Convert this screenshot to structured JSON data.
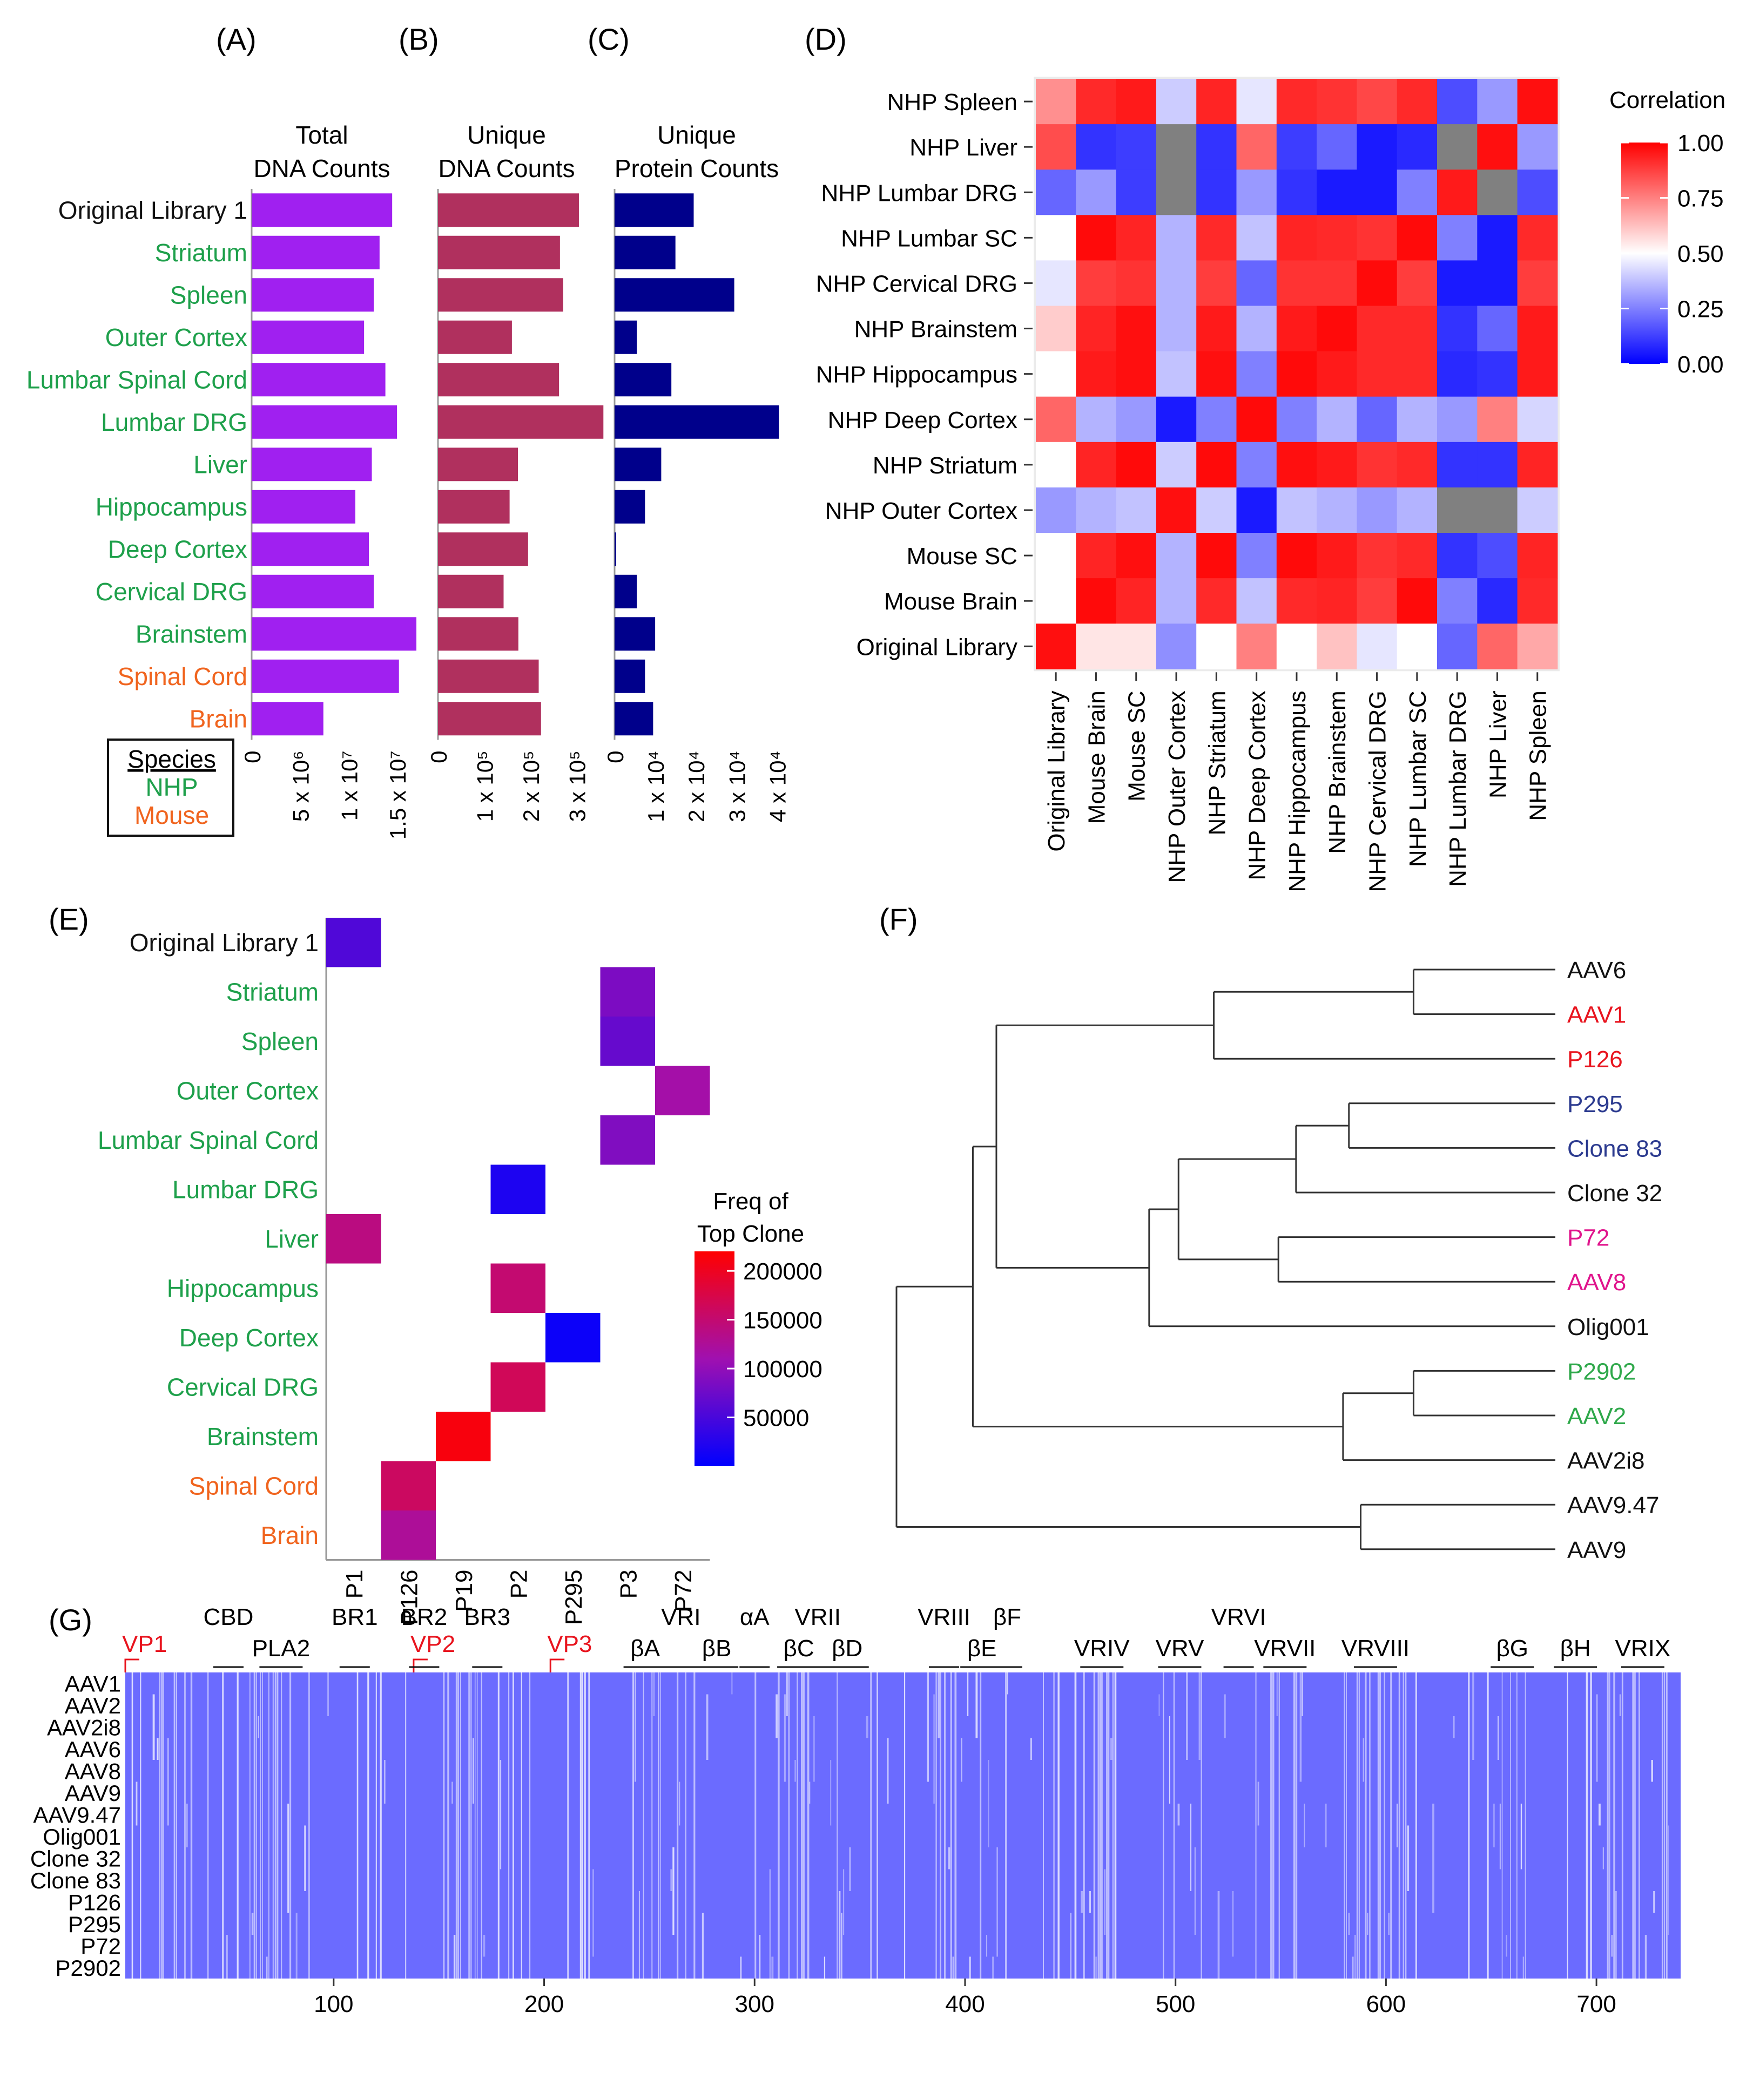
{
  "colors": {
    "nhp": "#1ea04b",
    "mouse": "#f0641e",
    "black": "#111111",
    "total_bar": "#a020f0",
    "unique_dna_bar": "#b0305e",
    "protein_bar": "#00008b",
    "heat_low": "#0000ff",
    "heat_mid": "#ffffff",
    "heat_high": "#ff0000",
    "heat_na": "#808080",
    "align_bg": "#6b6bff",
    "red_label": "#e8141e",
    "blue_label": "#2b3a8f",
    "magenta_label": "#e0148c",
    "green_label": "#2ea84a"
  },
  "panel_labels": {
    "A": "(A)",
    "B": "(B)",
    "C": "(C)",
    "D": "(D)",
    "E": "(E)",
    "F": "(F)",
    "G": "(G)"
  },
  "chart_data": [
    {
      "id": "A",
      "type": "bar",
      "orientation": "horizontal",
      "title": "Total DNA Counts",
      "title_lines": [
        "Total",
        "DNA Counts"
      ],
      "categories": [
        "Original Library 1",
        "Striatum",
        "Spleen",
        "Outer Cortex",
        "Lumbar Spinal Cord",
        "Lumbar DRG",
        "Liver",
        "Hippocampus",
        "Deep Cortex",
        "Cervical DRG",
        "Brainstem",
        "Spinal Cord",
        "Brain"
      ],
      "category_species": [
        "none",
        "NHP",
        "NHP",
        "NHP",
        "NHP",
        "NHP",
        "NHP",
        "NHP",
        "NHP",
        "NHP",
        "NHP",
        "Mouse",
        "Mouse"
      ],
      "values": [
        14500000,
        13200000,
        12600000,
        11600000,
        13800000,
        15000000,
        12400000,
        10700000,
        12100000,
        12600000,
        17000000,
        15200000,
        7400000
      ],
      "xlim": [
        0,
        17500000
      ],
      "ticks": [
        0,
        5000000,
        10000000,
        15000000
      ],
      "tick_labels": [
        "0",
        "5 x 10⁶",
        "1 x 10⁷",
        "1.5 x 10⁷"
      ]
    },
    {
      "id": "B",
      "type": "bar",
      "orientation": "horizontal",
      "title": "Unique DNA Counts",
      "title_lines": [
        "Unique",
        "DNA Counts"
      ],
      "values": [
        305000,
        264000,
        271000,
        160000,
        262000,
        358000,
        173000,
        155000,
        195000,
        142000,
        174000,
        218000,
        223000
      ],
      "xlim": [
        0,
        360000
      ],
      "ticks": [
        0,
        100000,
        200000,
        300000
      ],
      "tick_labels": [
        "0",
        "1 x 10⁵",
        "2 x 10⁵",
        "3 x 10⁵"
      ]
    },
    {
      "id": "C",
      "type": "bar",
      "orientation": "horizontal",
      "title": "Unique Protein Counts",
      "title_lines": [
        "Unique",
        "Protein Counts"
      ],
      "values": [
        19500,
        15000,
        29500,
        5500,
        14000,
        40500,
        11500,
        7500,
        400,
        5500,
        10000,
        7500,
        9500
      ],
      "xlim": [
        0,
        41000
      ],
      "ticks": [
        0,
        10000,
        20000,
        30000,
        40000
      ],
      "tick_labels": [
        "0",
        "1 x 10⁴",
        "2 x 10⁴",
        "3 x 10⁴",
        "4 x 10⁴"
      ]
    },
    {
      "id": "D",
      "type": "heatmap",
      "title": "Correlation",
      "rows": [
        "NHP Spleen",
        "NHP Liver",
        "NHP Lumbar DRG",
        "NHP Lumbar SC",
        "NHP Cervical DRG",
        "NHP Brainstem",
        "NHP Hippocampus",
        "NHP Deep Cortex",
        "NHP Striatum",
        "NHP Outer Cortex",
        "Mouse SC",
        "Mouse Brain",
        "Original Library"
      ],
      "cols": [
        "Original Library",
        "Mouse Brain",
        "Mouse SC",
        "NHP Outer Cortex",
        "NHP Striatum",
        "NHP Deep Cortex",
        "NHP Hippocampus",
        "NHP Brainstem",
        "NHP Cervical DRG",
        "NHP Lumbar SC",
        "NHP Lumbar DRG",
        "NHP Liver",
        "NHP Spleen"
      ],
      "values": [
        [
          0.72,
          0.92,
          0.95,
          0.4,
          0.93,
          0.45,
          0.92,
          0.9,
          0.86,
          0.92,
          0.15,
          0.3,
          0.97
        ],
        [
          0.85,
          0.1,
          0.12,
          null,
          0.1,
          0.8,
          0.12,
          0.2,
          0.05,
          0.08,
          null,
          0.97,
          0.3
        ],
        [
          0.2,
          0.3,
          0.12,
          null,
          0.1,
          0.3,
          0.1,
          0.05,
          0.05,
          0.25,
          0.95,
          null,
          0.15
        ],
        [
          0.5,
          0.98,
          0.93,
          0.35,
          0.92,
          0.38,
          0.93,
          0.92,
          0.9,
          0.98,
          0.25,
          0.05,
          0.92
        ],
        [
          0.45,
          0.88,
          0.9,
          0.35,
          0.88,
          0.2,
          0.9,
          0.9,
          0.98,
          0.88,
          0.05,
          0.05,
          0.88
        ],
        [
          0.6,
          0.93,
          0.97,
          0.35,
          0.95,
          0.35,
          0.95,
          0.98,
          0.92,
          0.92,
          0.1,
          0.2,
          0.95
        ],
        [
          0.5,
          0.95,
          0.97,
          0.38,
          0.97,
          0.25,
          0.98,
          0.95,
          0.92,
          0.92,
          0.08,
          0.1,
          0.95
        ],
        [
          0.8,
          0.35,
          0.3,
          0.05,
          0.25,
          0.98,
          0.25,
          0.35,
          0.2,
          0.35,
          0.3,
          0.75,
          0.42
        ],
        [
          0.5,
          0.93,
          0.98,
          0.4,
          0.98,
          0.25,
          0.97,
          0.95,
          0.9,
          0.92,
          0.1,
          0.1,
          0.93
        ],
        [
          0.3,
          0.35,
          0.38,
          0.97,
          0.4,
          0.05,
          0.38,
          0.35,
          0.3,
          0.35,
          null,
          null,
          0.4
        ],
        [
          0.5,
          0.93,
          0.97,
          0.35,
          0.98,
          0.25,
          0.98,
          0.95,
          0.9,
          0.92,
          0.1,
          0.15,
          0.93
        ],
        [
          0.5,
          0.98,
          0.93,
          0.35,
          0.92,
          0.38,
          0.92,
          0.93,
          0.88,
          0.98,
          0.25,
          0.08,
          0.92
        ],
        [
          0.97,
          0.55,
          0.55,
          0.28,
          0.5,
          0.75,
          0.5,
          0.62,
          0.45,
          0.5,
          0.2,
          0.8,
          0.67
        ]
      ],
      "colorbar": {
        "min": 0,
        "max": 1,
        "ticks": [
          "1.00",
          "0.75",
          "0.50",
          "0.25",
          "0.00"
        ]
      }
    },
    {
      "id": "E",
      "type": "heatmap",
      "title": "Freq of Top Clone",
      "title_lines": [
        "Freq of",
        "Top Clone"
      ],
      "rows": [
        "Original Library 1",
        "Striatum",
        "Spleen",
        "Outer Cortex",
        "Lumbar Spinal Cord",
        "Lumbar DRG",
        "Liver",
        "Hippocampus",
        "Deep Cortex",
        "Cervical DRG",
        "Brainstem",
        "Spinal Cord",
        "Brain"
      ],
      "cols": [
        "P1",
        "P126",
        "P19",
        "P2",
        "P295",
        "P3",
        "P72"
      ],
      "cells": [
        {
          "row": "Original Library 1",
          "col": "P1",
          "value": 55000
        },
        {
          "row": "Striatum",
          "col": "P3",
          "value": 85000
        },
        {
          "row": "Spleen",
          "col": "P3",
          "value": 70000
        },
        {
          "row": "Outer Cortex",
          "col": "P72",
          "value": 115000
        },
        {
          "row": "Lumbar Spinal Cord",
          "col": "P3",
          "value": 88000
        },
        {
          "row": "Lumbar DRG",
          "col": "P2",
          "value": 20000
        },
        {
          "row": "Liver",
          "col": "P1",
          "value": 140000
        },
        {
          "row": "Hippocampus",
          "col": "P2",
          "value": 150000
        },
        {
          "row": "Deep Cortex",
          "col": "P295",
          "value": 8000
        },
        {
          "row": "Cervical DRG",
          "col": "P2",
          "value": 165000
        },
        {
          "row": "Brainstem",
          "col": "P19",
          "value": 212000
        },
        {
          "row": "Spinal Cord",
          "col": "P126",
          "value": 160000
        },
        {
          "row": "Brain",
          "col": "P126",
          "value": 125000
        }
      ],
      "colorbar": {
        "min": 0,
        "max": 220000,
        "ticks": [
          200000,
          150000,
          100000,
          50000
        ],
        "tick_labels": [
          "200000",
          "150000",
          "100000",
          "50000"
        ]
      }
    },
    {
      "id": "F",
      "type": "dendrogram",
      "leaves": [
        "AAV6",
        "AAV1",
        "P126",
        "P295",
        "Clone 83",
        "Clone 32",
        "P72",
        "AAV8",
        "Olig001",
        "P2902",
        "AAV2",
        "AAV2i8",
        "AAV9.47",
        "AAV9"
      ],
      "leaf_colors": [
        "#111111",
        "#e8141e",
        "#e8141e",
        "#2b3a8f",
        "#2b3a8f",
        "#111111",
        "#e0148c",
        "#e0148c",
        "#111111",
        "#2ea84a",
        "#2ea84a",
        "#111111",
        "#111111",
        "#111111"
      ],
      "merges": [
        {
          "a": "AAV6",
          "b": "AAV1",
          "height": 0.12
        },
        {
          "a": "AAV6+AAV1",
          "b": "P126",
          "height": 0.46
        },
        {
          "a": "P295",
          "b": "Clone 83",
          "height": 0.23
        },
        {
          "a": "P295+Clone 83",
          "b": "Clone 32",
          "height": 0.32
        },
        {
          "a": "P72",
          "b": "AAV8",
          "height": 0.35
        },
        {
          "a": "P295-Clone32",
          "b": "P72+AAV8",
          "height": 0.52
        },
        {
          "a": "prev",
          "b": "Olig001",
          "height": 0.57
        },
        {
          "a": "prev",
          "b": "AAV6-P126",
          "height": 0.83
        },
        {
          "a": "P2902",
          "b": "AAV2",
          "height": 0.12
        },
        {
          "a": "P2902+AAV2",
          "b": "AAV2i8",
          "height": 0.24
        },
        {
          "a": "prev",
          "b": "big",
          "height": 0.87
        },
        {
          "a": "AAV9.47",
          "b": "AAV9",
          "height": 0.21
        },
        {
          "a": "prev",
          "b": "root",
          "height": 1.0
        }
      ]
    },
    {
      "id": "G",
      "type": "alignment",
      "rows": [
        "AAV1",
        "AAV2",
        "AAV2i8",
        "AAV6",
        "AAV8",
        "AAV9",
        "AAV9.47",
        "Olig001",
        "Clone 32",
        "Clone 83",
        "P126",
        "P295",
        "P72",
        "P2902"
      ],
      "xlim": [
        1,
        740
      ],
      "ticks": [
        100,
        200,
        300,
        400,
        500,
        600,
        700
      ],
      "tick_labels": [
        "100",
        "200",
        "300",
        "400",
        "500",
        "600",
        "700"
      ],
      "markers": [
        {
          "label": "VP1",
          "pos": 1
        },
        {
          "label": "VP2",
          "pos": 138
        },
        {
          "label": "VP3",
          "pos": 203
        }
      ],
      "regions_row1": [
        {
          "label": "CBD",
          "pos": 50
        },
        {
          "label": "BR1",
          "pos": 110
        },
        {
          "label": "BR2",
          "pos": 143
        },
        {
          "label": "BR3",
          "pos": 173
        },
        {
          "label": "VRI",
          "pos": 265
        },
        {
          "label": "αA",
          "pos": 300
        },
        {
          "label": "VRII",
          "pos": 330
        },
        {
          "label": "VRIII",
          "pos": 390
        },
        {
          "label": "βF",
          "pos": 420
        },
        {
          "label": "VRVI",
          "pos": 530
        }
      ],
      "regions_row2": [
        {
          "label": "PLA2",
          "pos": 75
        },
        {
          "label": "βA",
          "pos": 248
        },
        {
          "label": "βB",
          "pos": 282
        },
        {
          "label": "βC",
          "pos": 321
        },
        {
          "label": "βD",
          "pos": 344
        },
        {
          "label": "βE",
          "pos": 408
        },
        {
          "label": "VRIV",
          "pos": 465
        },
        {
          "label": "VRV",
          "pos": 502
        },
        {
          "label": "VRVII",
          "pos": 552
        },
        {
          "label": "VRVIII",
          "pos": 595
        },
        {
          "label": "βG",
          "pos": 660
        },
        {
          "label": "βH",
          "pos": 690
        },
        {
          "label": "VRIX",
          "pos": 722
        }
      ],
      "variable_zones": [
        [
          16,
          40
        ],
        [
          60,
          90
        ],
        [
          150,
          175
        ],
        [
          245,
          275
        ],
        [
          300,
          345
        ],
        [
          380,
          420
        ],
        [
          455,
          470
        ],
        [
          490,
          520
        ],
        [
          545,
          560
        ],
        [
          580,
          610
        ],
        [
          650,
          670
        ],
        [
          700,
          735
        ]
      ]
    }
  ],
  "legend": {
    "title": "Species",
    "items": [
      {
        "label": "NHP",
        "color": "#1ea04b"
      },
      {
        "label": "Mouse",
        "color": "#f0641e"
      }
    ]
  }
}
